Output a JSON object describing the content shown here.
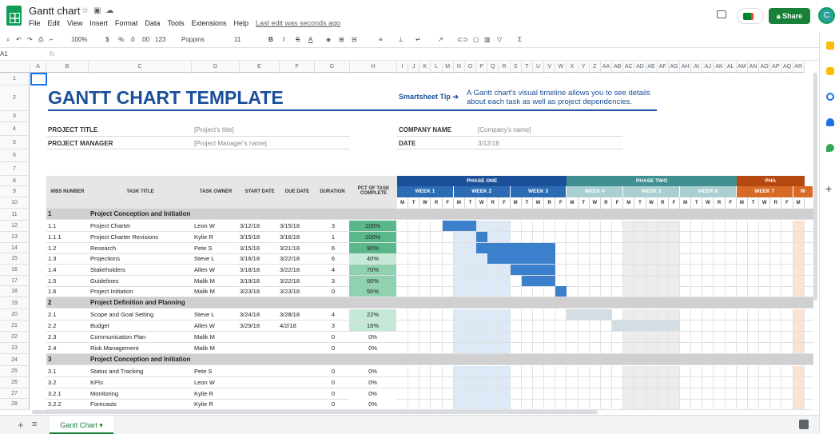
{
  "app": {
    "title": "Gantt chart",
    "menu": [
      "File",
      "Edit",
      "View",
      "Insert",
      "Format",
      "Data",
      "Tools",
      "Extensions",
      "Help"
    ],
    "last_edit": "Last edit was seconds ago",
    "share": "Share",
    "avatar": "C"
  },
  "toolbar": {
    "zoom": "100%",
    "currency": "$",
    "percent": "%",
    "dec_dec": ".0",
    "dec_inc": ".00",
    "number_format": "123",
    "font": "Poppins",
    "font_size": "11",
    "bold": "B",
    "italic": "I",
    "strike": "S",
    "text_color": "A"
  },
  "formula_bar": {
    "cell_ref": "A1",
    "fx": "fx",
    "value": ""
  },
  "columns": [
    "A",
    "B",
    "C",
    "D",
    "E",
    "F",
    "G",
    "H",
    "I",
    "J",
    "K",
    "L",
    "M",
    "N",
    "O",
    "P",
    "Q",
    "R",
    "S",
    "T",
    "U",
    "V",
    "W",
    "X",
    "Y",
    "Z",
    "AA",
    "AB",
    "AC",
    "AD",
    "AE",
    "AF",
    "AG",
    "AH",
    "AI",
    "AJ",
    "AK",
    "AL",
    "AM",
    "AN",
    "AO",
    "AP",
    "AQ",
    "AR"
  ],
  "rows": [
    "1",
    "2",
    "3",
    "4",
    "5",
    "6",
    "7",
    "8",
    "9",
    "10",
    "11",
    "12",
    "13",
    "14",
    "15",
    "16",
    "17",
    "18",
    "19",
    "20",
    "21",
    "22",
    "23",
    "24",
    "25",
    "26",
    "27",
    "28"
  ],
  "sheet": {
    "title": "GANTT CHART TEMPLATE",
    "tip_label": "Smartsheet Tip ➔",
    "tip_text": "A Gantt chart's visual timeline allows you to see details about each task as well as project dependencies.",
    "project_title_label": "PROJECT TITLE",
    "project_title_value": "[Project's title]",
    "project_manager_label": "PROJECT MANAGER",
    "project_manager_value": "[Project Manager's name]",
    "company_label": "COMPANY NAME",
    "company_value": "[Company's name]",
    "date_label": "DATE",
    "date_value": "3/12/18"
  },
  "table_headers": {
    "wbs": "WBS NUMBER",
    "task": "TASK TITLE",
    "owner": "TASK OWNER",
    "start": "START DATE",
    "due": "DUE DATE",
    "duration": "DURATION",
    "pct": "PCT OF TASK COMPLETE"
  },
  "phases": [
    "PHASE ONE",
    "PHASE TWO",
    "PHA"
  ],
  "weeks": [
    "WEEK 1",
    "WEEK 2",
    "WEEK 3",
    "WEEK 4",
    "WEEK 5",
    "WEEK 6",
    "WEEK 7",
    "W"
  ],
  "days": [
    "M",
    "T",
    "W",
    "R",
    "F",
    "M",
    "T",
    "W",
    "R",
    "F",
    "M",
    "T",
    "W",
    "R",
    "F",
    "M",
    "T",
    "W",
    "R",
    "F",
    "M",
    "T",
    "W",
    "R",
    "F",
    "M",
    "T",
    "W",
    "R",
    "F",
    "M",
    "T",
    "W",
    "R",
    "F",
    "M"
  ],
  "colors": {
    "phase1": "#1b4f99",
    "week_phase1": "#2b6cb4",
    "phase2": "#3f8f93",
    "week_phase2": "#a9cfd0",
    "phase3": "#b5480f",
    "week_phase3": "#d86a27",
    "bar_blue": "#3b7fcd",
    "bar_grey": "#d3dde4",
    "pct_dark": "#59b78a",
    "pct_mid": "#8fd1b0",
    "pct_light": "#c5e9d6"
  },
  "tasks": [
    {
      "wbs": "1",
      "title": "Project Conception and Initiation",
      "section": true
    },
    {
      "wbs": "1.1",
      "title": "Project Charter",
      "owner": "Leon W",
      "start": "3/12/18",
      "due": "3/15/18",
      "duration": "3",
      "pct": "100%",
      "bar_start": 4,
      "bar_days": 3,
      "bar": "blue"
    },
    {
      "wbs": "1.1.1",
      "title": "Project Charter Revisions",
      "owner": "Kylie R",
      "start": "3/15/18",
      "due": "3/16/18",
      "duration": "1",
      "pct": "100%",
      "bar_start": 7,
      "bar_days": 1,
      "bar": "blue"
    },
    {
      "wbs": "1.2",
      "title": "Research",
      "owner": "Pete S",
      "start": "3/15/18",
      "due": "3/21/18",
      "duration": "6",
      "pct": "90%",
      "bar_start": 7,
      "bar_days": 7,
      "bar": "blue"
    },
    {
      "wbs": "1.3",
      "title": "Projections",
      "owner": "Steve L",
      "start": "3/16/18",
      "due": "3/22/18",
      "duration": "6",
      "pct": "40%",
      "bar_start": 8,
      "bar_days": 6,
      "bar": "blue"
    },
    {
      "wbs": "1.4",
      "title": "Stakeholders",
      "owner": "Allen W",
      "start": "3/18/18",
      "due": "3/22/18",
      "duration": "4",
      "pct": "70%",
      "bar_start": 10,
      "bar_days": 4,
      "bar": "blue"
    },
    {
      "wbs": "1.5",
      "title": "Guidelines",
      "owner": "Malik M",
      "start": "3/19/18",
      "due": "3/22/18",
      "duration": "3",
      "pct": "60%",
      "bar_start": 11,
      "bar_days": 3,
      "bar": "blue"
    },
    {
      "wbs": "1.6",
      "title": "Project Initiation",
      "owner": "Malik M",
      "start": "3/23/18",
      "due": "3/23/18",
      "duration": "0",
      "pct": "50%",
      "bar_start": 14,
      "bar_days": 1,
      "bar": "blue"
    },
    {
      "wbs": "2",
      "title": "Project Definition and Planning",
      "section": true
    },
    {
      "wbs": "2.1",
      "title": "Scope and Goal Setting",
      "owner": "Steve L",
      "start": "3/24/18",
      "due": "3/28/18",
      "duration": "4",
      "pct": "22%",
      "bar_start": 15,
      "bar_days": 4,
      "bar": "grey"
    },
    {
      "wbs": "2.2",
      "title": "Budget",
      "owner": "Allen W",
      "start": "3/29/18",
      "due": "4/2/18",
      "duration": "3",
      "pct": "16%",
      "bar_start": 19,
      "bar_days": 6,
      "bar": "grey"
    },
    {
      "wbs": "2.3",
      "title": "Communication Plan",
      "owner": "Malik M",
      "start": "",
      "due": "",
      "duration": "0",
      "pct": "0%"
    },
    {
      "wbs": "2.4",
      "title": "Risk Management",
      "owner": "Malik M",
      "start": "",
      "due": "",
      "duration": "0",
      "pct": "0%"
    },
    {
      "wbs": "3",
      "title": "Project Conception and Initiation",
      "section": true
    },
    {
      "wbs": "3.1",
      "title": "Status and Tracking",
      "owner": "Pete S",
      "start": "",
      "due": "",
      "duration": "0",
      "pct": "0%"
    },
    {
      "wbs": "3.2",
      "title": "KPIs",
      "owner": "Leon W",
      "start": "",
      "due": "",
      "duration": "0",
      "pct": "0%"
    },
    {
      "wbs": "3.2.1",
      "title": "Monitoring",
      "owner": "Kylie R",
      "start": "",
      "due": "",
      "duration": "0",
      "pct": "0%"
    },
    {
      "wbs": "3.2.2",
      "title": "Forecasts",
      "owner": "Kylie R",
      "start": "",
      "due": "",
      "duration": "0",
      "pct": "0%"
    }
  ],
  "sheet_tab": "Gantt Chart"
}
